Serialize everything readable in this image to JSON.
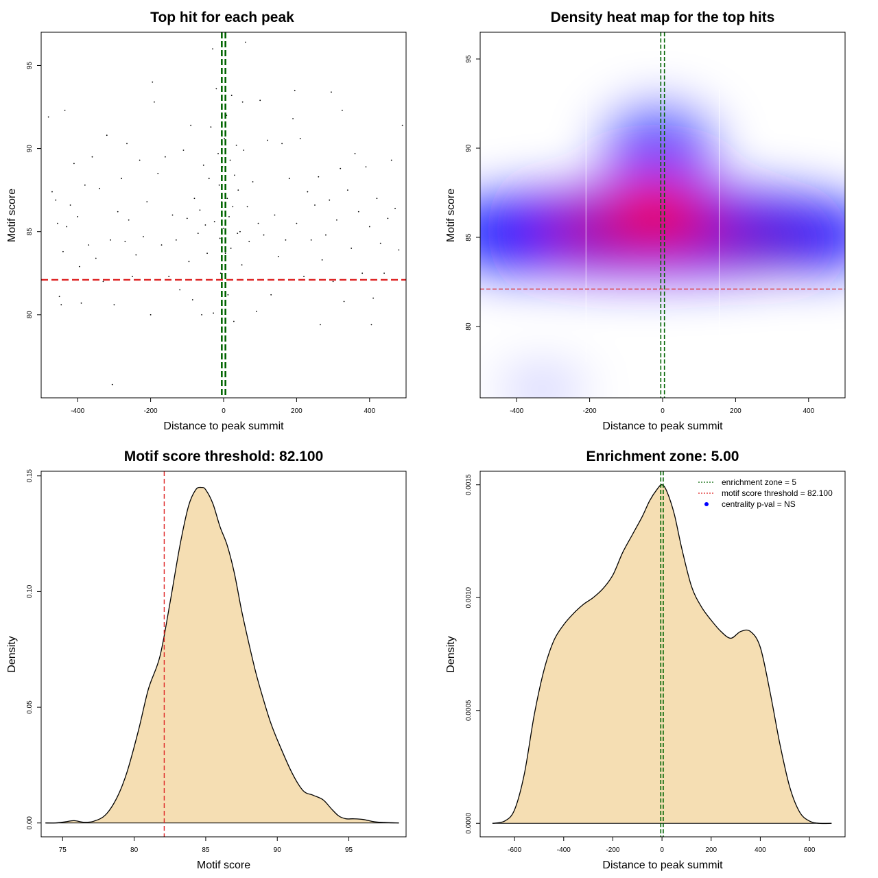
{
  "chart_data": [
    {
      "type": "scatter",
      "title": "Top hit for each peak",
      "xlabel": "Distance to peak summit",
      "ylabel": "Motif score",
      "xlim": [
        -500,
        500
      ],
      "ylim": [
        75,
        97
      ],
      "xticks": [
        "-400",
        "-200",
        "0",
        "200",
        "400"
      ],
      "yticks": [
        "80",
        "85",
        "90",
        "95"
      ],
      "grid": false,
      "reference_lines": {
        "vertical_x": [
          -5,
          5
        ],
        "vertical_color": "#006400",
        "horizontal_y": 82.1,
        "horizontal_color": "#dd2222"
      },
      "points": [
        [
          -480,
          91.9
        ],
        [
          -470,
          87.4
        ],
        [
          -460,
          86.9
        ],
        [
          -455,
          85.5
        ],
        [
          -450,
          81.1
        ],
        [
          -445,
          80.6
        ],
        [
          -440,
          83.8
        ],
        [
          -435,
          92.3
        ],
        [
          -430,
          85.3
        ],
        [
          -420,
          86.6
        ],
        [
          -410,
          89.1
        ],
        [
          -400,
          85.9
        ],
        [
          -395,
          82.9
        ],
        [
          -390,
          80.7
        ],
        [
          -380,
          87.8
        ],
        [
          -370,
          84.2
        ],
        [
          -360,
          89.5
        ],
        [
          -350,
          83.4
        ],
        [
          -340,
          87.6
        ],
        [
          -330,
          82.0
        ],
        [
          -320,
          90.8
        ],
        [
          -310,
          84.5
        ],
        [
          -305,
          75.8
        ],
        [
          -300,
          80.6
        ],
        [
          -290,
          86.2
        ],
        [
          -280,
          88.2
        ],
        [
          -270,
          84.4
        ],
        [
          -265,
          90.3
        ],
        [
          -260,
          85.7
        ],
        [
          -250,
          82.3
        ],
        [
          -240,
          83.6
        ],
        [
          -230,
          89.3
        ],
        [
          -220,
          84.7
        ],
        [
          -210,
          86.8
        ],
        [
          -200,
          80.0
        ],
        [
          -195,
          94.0
        ],
        [
          -190,
          92.8
        ],
        [
          -180,
          88.5
        ],
        [
          -170,
          84.2
        ],
        [
          -160,
          89.5
        ],
        [
          -150,
          82.3
        ],
        [
          -140,
          86.0
        ],
        [
          -130,
          84.5
        ],
        [
          -120,
          81.5
        ],
        [
          -110,
          89.9
        ],
        [
          -100,
          85.8
        ],
        [
          -95,
          83.2
        ],
        [
          -90,
          91.4
        ],
        [
          -85,
          80.9
        ],
        [
          -80,
          87.0
        ],
        [
          -70,
          84.9
        ],
        [
          -65,
          86.3
        ],
        [
          -60,
          80.0
        ],
        [
          -55,
          89.0
        ],
        [
          -50,
          85.4
        ],
        [
          -45,
          83.7
        ],
        [
          -40,
          88.2
        ],
        [
          -35,
          91.3
        ],
        [
          -30,
          96.0
        ],
        [
          -28,
          80.1
        ],
        [
          -25,
          85.6
        ],
        [
          -20,
          93.6
        ],
        [
          -15,
          89.7
        ],
        [
          -12,
          87.8
        ],
        [
          -10,
          84.6
        ],
        [
          -8,
          82.5
        ],
        [
          -5,
          86.8
        ],
        [
          -3,
          88.9
        ],
        [
          0,
          85.2
        ],
        [
          2,
          90.6
        ],
        [
          5,
          83.7
        ],
        [
          8,
          92.0
        ],
        [
          10,
          87.0
        ],
        [
          12,
          81.2
        ],
        [
          15,
          85.9
        ],
        [
          18,
          89.3
        ],
        [
          20,
          84.0
        ],
        [
          22,
          93.2
        ],
        [
          25,
          86.5
        ],
        [
          28,
          79.6
        ],
        [
          30,
          88.4
        ],
        [
          35,
          90.2
        ],
        [
          38,
          84.9
        ],
        [
          40,
          87.5
        ],
        [
          45,
          85.0
        ],
        [
          50,
          83.0
        ],
        [
          52,
          92.8
        ],
        [
          55,
          89.9
        ],
        [
          60,
          96.4
        ],
        [
          65,
          86.5
        ],
        [
          70,
          84.4
        ],
        [
          80,
          88.0
        ],
        [
          90,
          80.2
        ],
        [
          95,
          85.5
        ],
        [
          100,
          92.9
        ],
        [
          110,
          84.8
        ],
        [
          120,
          90.5
        ],
        [
          130,
          81.2
        ],
        [
          140,
          86.0
        ],
        [
          150,
          83.5
        ],
        [
          160,
          90.3
        ],
        [
          170,
          84.5
        ],
        [
          180,
          88.2
        ],
        [
          190,
          91.8
        ],
        [
          195,
          93.5
        ],
        [
          200,
          85.5
        ],
        [
          210,
          90.6
        ],
        [
          220,
          82.3
        ],
        [
          230,
          87.4
        ],
        [
          240,
          84.5
        ],
        [
          250,
          86.6
        ],
        [
          260,
          88.3
        ],
        [
          265,
          79.4
        ],
        [
          270,
          83.3
        ],
        [
          280,
          84.8
        ],
        [
          290,
          86.9
        ],
        [
          295,
          93.4
        ],
        [
          300,
          82.0
        ],
        [
          310,
          85.7
        ],
        [
          320,
          88.8
        ],
        [
          325,
          92.3
        ],
        [
          330,
          80.8
        ],
        [
          340,
          87.5
        ],
        [
          350,
          84.0
        ],
        [
          360,
          89.7
        ],
        [
          370,
          86.2
        ],
        [
          380,
          82.5
        ],
        [
          390,
          88.9
        ],
        [
          400,
          85.3
        ],
        [
          405,
          79.4
        ],
        [
          410,
          81.0
        ],
        [
          420,
          87.0
        ],
        [
          430,
          84.3
        ],
        [
          440,
          82.5
        ],
        [
          450,
          85.8
        ],
        [
          460,
          89.3
        ],
        [
          470,
          86.4
        ],
        [
          480,
          83.9
        ],
        [
          490,
          91.4
        ]
      ]
    },
    {
      "type": "heatmap",
      "title": "Density heat map for the top hits",
      "xlabel": "Distance to peak summit",
      "ylabel": "Motif score",
      "xlim": [
        -500,
        500
      ],
      "ylim": [
        76,
        96.5
      ],
      "xticks": [
        "-400",
        "-200",
        "0",
        "200",
        "400"
      ],
      "yticks": [
        "80",
        "85",
        "90",
        "95"
      ],
      "grid": false,
      "colors": {
        "low": "#ffffff",
        "mid": "#0000ff",
        "high": "#ff0000"
      },
      "density_peak": {
        "x": -20,
        "y": 86.5
      },
      "reference_lines": {
        "vertical_x": [
          -5,
          5
        ],
        "vertical_color": "#006400",
        "horizontal_y": 82.1,
        "horizontal_color": "#dd2222"
      }
    },
    {
      "type": "area",
      "title": "Motif score threshold: 82.100",
      "xlabel": "Motif score",
      "ylabel": "Density",
      "xlim": [
        73.5,
        99
      ],
      "ylim": [
        -0.006,
        0.152
      ],
      "xticks": [
        "75",
        "80",
        "85",
        "90",
        "95"
      ],
      "yticks": [
        "0.00",
        "0.05",
        "0.10",
        "0.15"
      ],
      "grid": false,
      "fill_color": "#f5deb3",
      "reference_lines": {
        "vertical_x": [
          82.1
        ],
        "vertical_color": "#dd2222"
      },
      "x": [
        73.8,
        74.5,
        75.2,
        75.8,
        76.5,
        77.2,
        78.0,
        78.8,
        79.5,
        80.3,
        81.0,
        81.8,
        82.5,
        83.2,
        83.8,
        84.3,
        84.7,
        85.0,
        85.5,
        86.0,
        86.5,
        87.0,
        87.5,
        88.0,
        88.5,
        89.0,
        89.5,
        90.0,
        91.0,
        91.8,
        92.5,
        93.2,
        93.8,
        94.3,
        94.8,
        95.3,
        96.0,
        96.8,
        97.5,
        98.5
      ],
      "values": [
        0.0,
        0.0,
        0.0005,
        0.001,
        0.0003,
        0.0008,
        0.0035,
        0.011,
        0.022,
        0.04,
        0.058,
        0.072,
        0.095,
        0.12,
        0.137,
        0.144,
        0.145,
        0.144,
        0.138,
        0.128,
        0.12,
        0.108,
        0.092,
        0.078,
        0.065,
        0.054,
        0.044,
        0.036,
        0.022,
        0.014,
        0.012,
        0.01,
        0.006,
        0.003,
        0.0018,
        0.0018,
        0.0015,
        0.0005,
        0.0002,
        0.0
      ]
    },
    {
      "type": "area",
      "title": "Enrichment zone: 5.00",
      "xlabel": "Distance to peak summit",
      "ylabel": "Density",
      "xlim": [
        -740,
        745
      ],
      "ylim": [
        -6e-05,
        0.00156
      ],
      "xticks": [
        "-600",
        "-400",
        "-200",
        "0",
        "200",
        "400",
        "600"
      ],
      "yticks": [
        "0.0000",
        "0.0005",
        "0.0010",
        "0.0015"
      ],
      "grid": false,
      "fill_color": "#f5deb3",
      "reference_lines": {
        "vertical_x": [
          -5,
          5
        ],
        "vertical_color": "#006400"
      },
      "legend": {
        "position": "top-right",
        "entries": [
          {
            "label": "enrichment zone = 5",
            "color": "#006400",
            "marker": "dotted-line"
          },
          {
            "label": "motif score threshold = 82.100",
            "color": "#dd2222",
            "marker": "dotted-line"
          },
          {
            "label": "centrality p-val = NS",
            "color": "#0000ff",
            "marker": "point"
          }
        ]
      },
      "x": [
        -690,
        -640,
        -600,
        -560,
        -520,
        -480,
        -440,
        -400,
        -360,
        -320,
        -280,
        -240,
        -200,
        -160,
        -120,
        -80,
        -50,
        -20,
        0,
        20,
        50,
        80,
        120,
        160,
        200,
        240,
        280,
        320,
        360,
        400,
        440,
        480,
        520,
        560,
        600,
        640,
        690
      ],
      "values": [
        0.0,
        1e-05,
        6e-05,
        0.00022,
        0.00048,
        0.00068,
        0.00081,
        0.00088,
        0.00093,
        0.00097,
        0.001,
        0.00104,
        0.0011,
        0.0012,
        0.00128,
        0.00136,
        0.00143,
        0.00148,
        0.0015,
        0.00147,
        0.00137,
        0.00122,
        0.00105,
        0.00096,
        0.0009,
        0.00085,
        0.00082,
        0.00085,
        0.00085,
        0.00078,
        0.00058,
        0.00035,
        0.00016,
        5e-05,
        1e-05,
        0.0,
        0.0
      ]
    }
  ]
}
